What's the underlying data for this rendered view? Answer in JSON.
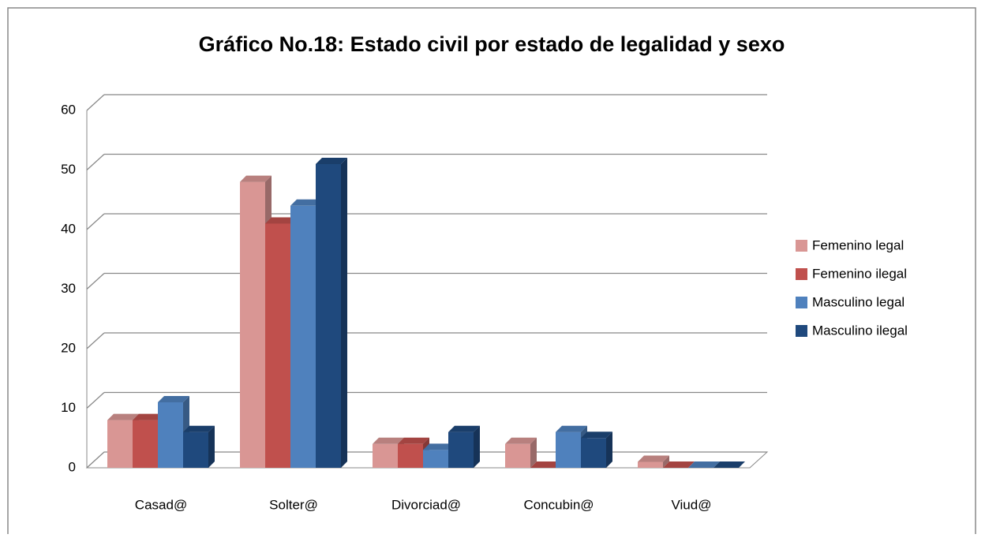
{
  "chart_data": {
    "type": "bar3d",
    "title": "Gráfico No.18: Estado civil por estado de legalidad y sexo",
    "categories": [
      "Casad@",
      "Solter@",
      "Divorciad@",
      "Concubin@",
      "Viud@"
    ],
    "series": [
      {
        "name": "Femenino legal",
        "color": "#d99694",
        "values": [
          8,
          48,
          4,
          4,
          1
        ]
      },
      {
        "name": "Femenino ilegal",
        "color": "#c0504d",
        "values": [
          8,
          41,
          4,
          0,
          0
        ]
      },
      {
        "name": "Masculino legal",
        "color": "#4f81bd",
        "values": [
          11,
          44,
          3,
          6,
          0
        ]
      },
      {
        "name": "Masculino ilegal",
        "color": "#1f497d",
        "values": [
          6,
          51,
          6,
          5,
          0
        ]
      }
    ],
    "ylim": [
      0,
      60
    ],
    "yticks": [
      0,
      10,
      20,
      30,
      40,
      50,
      60
    ],
    "grid": true,
    "legend": "right"
  }
}
